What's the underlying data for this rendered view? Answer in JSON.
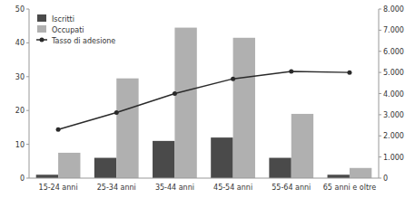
{
  "chart_data": {
    "type": "bar",
    "categories": [
      "15-24 anni",
      "25-34 anni",
      "35-44 anni",
      "45-54 anni",
      "55-64 anni",
      "65 anni e oltre"
    ],
    "series": [
      {
        "name": "Iscritti",
        "color": "#4a4a4a",
        "values": [
          1,
          6,
          11,
          12,
          6,
          1
        ]
      },
      {
        "name": "Occupati",
        "color": "#b0b0b0",
        "values": [
          7.5,
          29.5,
          44.5,
          41.5,
          19,
          3
        ]
      },
      {
        "name": "Tasso di adesione",
        "color": "#2a2a2a",
        "type": "line",
        "marker": "circle",
        "axis": "y2",
        "values": [
          2300,
          3100,
          4000,
          4700,
          5050,
          5000
        ]
      }
    ],
    "ylim": [
      0,
      50
    ],
    "yticks": [
      0,
      10,
      20,
      30,
      40,
      50
    ],
    "y2lim": [
      0,
      8000
    ],
    "y2ticks": [
      0,
      {
        "value": 1000,
        "label": "1.000"
      },
      {
        "value": 2000,
        "label": "2.000"
      },
      {
        "value": 3000,
        "label": "3.000"
      },
      {
        "value": 4000,
        "label": "4.000"
      },
      {
        "value": 5000,
        "label": "5.000"
      },
      {
        "value": 6000,
        "label": "6.000"
      },
      {
        "value": 7000,
        "label": "7.000"
      },
      {
        "value": 8000,
        "label": "8.000"
      }
    ],
    "legend": "upper left",
    "grid": false
  }
}
